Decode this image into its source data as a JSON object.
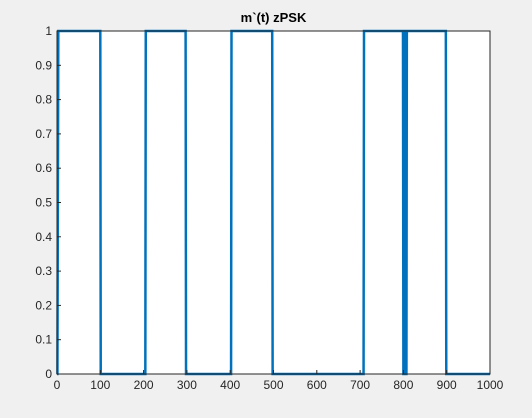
{
  "chart_data": {
    "type": "line",
    "title": "m`(t) zPSK",
    "xlabel": "",
    "ylabel": "",
    "xlim": [
      0,
      1000
    ],
    "ylim": [
      0,
      1
    ],
    "grid": false,
    "x_ticks": [
      0,
      100,
      200,
      300,
      400,
      500,
      600,
      700,
      800,
      900,
      1000
    ],
    "y_ticks": [
      0,
      0.1,
      0.2,
      0.3,
      0.4,
      0.5,
      0.6,
      0.7,
      0.8,
      0.9,
      1
    ],
    "x_tick_labels": [
      "0",
      "100",
      "200",
      "300",
      "400",
      "500",
      "600",
      "700",
      "800",
      "900",
      "1000"
    ],
    "y_tick_labels": [
      "0",
      "0.1",
      "0.2",
      "0.3",
      "0.4",
      "0.5",
      "0.6",
      "0.7",
      "0.8",
      "0.9",
      "1"
    ],
    "series": [
      {
        "color": "#0072bd",
        "x": [
          0,
          1,
          3,
          6,
          100,
          101,
          204,
          205,
          297,
          298,
          402,
          403,
          497,
          498,
          708,
          709,
          799,
          800,
          802,
          803,
          805,
          806,
          807,
          808,
          898,
          899,
          1000
        ],
        "y": [
          0,
          0,
          1,
          1,
          1,
          0,
          0,
          1,
          1,
          0,
          0,
          1,
          1,
          0,
          0,
          1,
          1,
          0,
          0,
          1,
          1,
          0,
          0,
          1,
          1,
          0,
          0
        ]
      }
    ]
  },
  "colors": {
    "figure_bg": "#f0f0f0",
    "axes_bg": "#ffffff",
    "axes_line": "#262626"
  }
}
